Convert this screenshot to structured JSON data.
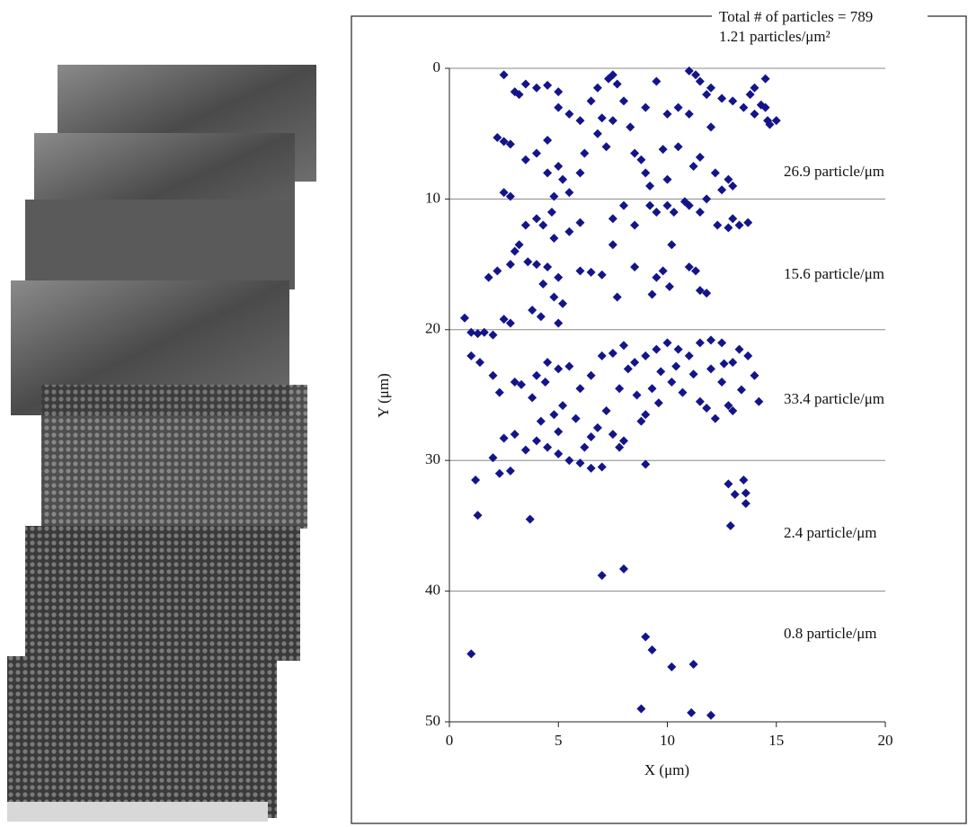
{
  "chart_data": {
    "type": "scatter",
    "title": "Total # of particles = 789",
    "subtitle": "1.21 particles/μm²",
    "x_label": "X (μm)",
    "y_label": "Y (μm)",
    "annotations": [
      "26.9 particle/μm",
      "15.6 particle/μm",
      "33.4 particle/μm",
      "2.4 particle/μm",
      "0.8 particle/μm"
    ],
    "xlim": [
      0,
      20
    ],
    "xticks": [
      0,
      5,
      10,
      15,
      20
    ],
    "ylim": [
      0,
      50
    ],
    "yticks": [
      0,
      10,
      20,
      30,
      40,
      50
    ],
    "y_inverted": true,
    "grid": true,
    "color": "#14148a",
    "x": [
      2.5,
      3,
      3.5,
      4,
      4.5,
      7.5,
      7.7,
      7.3,
      8,
      9,
      9.5,
      10,
      10.5,
      11,
      11.3,
      11.5,
      12,
      11.8,
      12.5,
      13,
      13.5,
      14,
      14.5,
      14.6,
      14.7,
      14.3,
      14.5,
      14,
      13.8,
      15,
      5,
      5.5,
      6,
      6.5,
      6.8,
      7,
      7.2,
      4.5,
      4,
      3.5,
      4.5,
      5,
      5.2,
      5.5,
      6,
      4.8,
      2.2,
      2.5,
      2.8,
      2.5,
      2.8,
      8.5,
      8.8,
      9,
      9.2,
      10,
      11,
      12,
      10.5,
      11.5,
      12.2,
      13,
      12.8,
      6.2,
      5,
      9.8,
      11.2,
      3.2,
      6.8,
      8.3,
      7.5,
      9.2,
      9.5,
      10,
      10.3,
      10.8,
      11,
      11.5,
      11.8,
      12.5,
      13,
      13.3,
      13.7,
      12.8,
      12.3,
      3.5,
      4,
      4.3,
      4.7,
      5.5,
      6,
      3,
      3.2,
      2.8,
      2.2,
      1.8,
      4,
      4.5,
      5,
      6,
      6.5,
      7,
      4.3,
      4.8,
      5.2,
      3.8,
      4.2,
      5,
      7.5,
      7.7,
      8.5,
      9.5,
      9.8,
      9.3,
      10.1,
      11,
      11.3,
      11.5,
      11.8,
      2.5,
      2.8,
      7.5,
      8,
      8.5,
      10.2,
      4.8,
      3.6,
      0.7,
      1,
      1.3,
      1.6,
      2,
      1,
      1.4,
      2,
      2.3,
      3,
      3.3,
      4,
      4.5,
      5,
      5.5,
      6,
      6.5,
      7,
      7.5,
      8,
      8.5,
      9,
      9.5,
      10,
      10.5,
      11,
      11.5,
      12,
      12.5,
      13,
      13.3,
      13.7,
      14,
      14.2,
      12,
      12.5,
      12.8,
      11.8,
      11.5,
      10.7,
      10.2,
      9.7,
      9.3,
      9,
      8.6,
      8.2,
      7.8,
      7.2,
      6.8,
      6.5,
      6.2,
      6,
      5.5,
      5,
      4.5,
      4,
      3.5,
      3,
      4.2,
      4.8,
      5.2,
      5.8,
      7.5,
      7.8,
      8,
      7,
      6.5,
      5,
      12.2,
      13,
      13.4,
      12.6,
      11.2,
      10.4,
      9.6,
      8.8,
      3.8,
      4.4,
      2.5,
      2,
      2.3,
      2.8,
      1.2,
      1.3,
      3.7,
      9,
      12.8,
      13.1,
      13.5,
      13.6,
      13.6,
      12.9,
      7,
      8,
      1,
      9,
      9.3,
      10.2,
      11.2,
      8.8,
      11.1,
      12
    ],
    "values": [
      0.5,
      1.8,
      1.2,
      1.5,
      1.3,
      0.5,
      1.2,
      0.8,
      2.5,
      3,
      1,
      3.5,
      3,
      0.2,
      0.5,
      1,
      1.5,
      2,
      2.3,
      2.5,
      3,
      3.5,
      3,
      4,
      4.3,
      2.8,
      0.8,
      1.5,
      2,
      4,
      3,
      3.5,
      4,
      2.5,
      5,
      3.8,
      6,
      5.5,
      6.5,
      7,
      8,
      7.5,
      8.5,
      9.5,
      8,
      9.8,
      5.3,
      5.6,
      5.8,
      9.5,
      9.8,
      6.5,
      7,
      8,
      9,
      8.5,
      3.5,
      4.5,
      6,
      6.8,
      8,
      9,
      8.5,
      6.5,
      1.8,
      6.2,
      7.5,
      2,
      1.5,
      4.5,
      4,
      10.5,
      11,
      10.5,
      11,
      10.2,
      10.5,
      11,
      10,
      9.3,
      11.5,
      12,
      11.8,
      12.2,
      12,
      12,
      11.5,
      12,
      11,
      12.5,
      11.8,
      14,
      13.5,
      15,
      15.5,
      16,
      15,
      15.2,
      16,
      15.5,
      15.6,
      15.8,
      16.5,
      17.5,
      18,
      18.5,
      19,
      19.5,
      13.5,
      17.5,
      15.2,
      16,
      15.5,
      17.3,
      16.7,
      15.2,
      15.5,
      17,
      17.2,
      19.2,
      19.5,
      11.5,
      10.5,
      12,
      13.5,
      13,
      14.8,
      19.1,
      20.2,
      20.3,
      20.2,
      20.4,
      22,
      22.5,
      23.5,
      24.8,
      24,
      24.2,
      23.5,
      22.5,
      23,
      22.8,
      24.5,
      23.5,
      22,
      21.8,
      21.2,
      22.5,
      22,
      21.5,
      21,
      21.5,
      22,
      21,
      20.8,
      21,
      22.5,
      21.5,
      22,
      23.5,
      25.5,
      23,
      24,
      25.8,
      26,
      25.5,
      24.8,
      24,
      23.2,
      24.5,
      26.5,
      25,
      23,
      24.5,
      26.2,
      27.5,
      28.2,
      29,
      30.2,
      30,
      29.5,
      29,
      28.5,
      29.2,
      28,
      27,
      26.5,
      25.8,
      26.8,
      28,
      29,
      28.5,
      30.5,
      30.6,
      27.8,
      26.8,
      26.2,
      24.6,
      22.6,
      23.4,
      22.8,
      25.6,
      27,
      25.2,
      24,
      28.3,
      29.8,
      31,
      30.8,
      31.5,
      34.2,
      34.5,
      30.3,
      31.8,
      32.6,
      31.5,
      32.5,
      33.3,
      35,
      38.8,
      38.3,
      44.8,
      43.5,
      44.5,
      45.8,
      45.6,
      49,
      49.3,
      49.5
    ]
  }
}
